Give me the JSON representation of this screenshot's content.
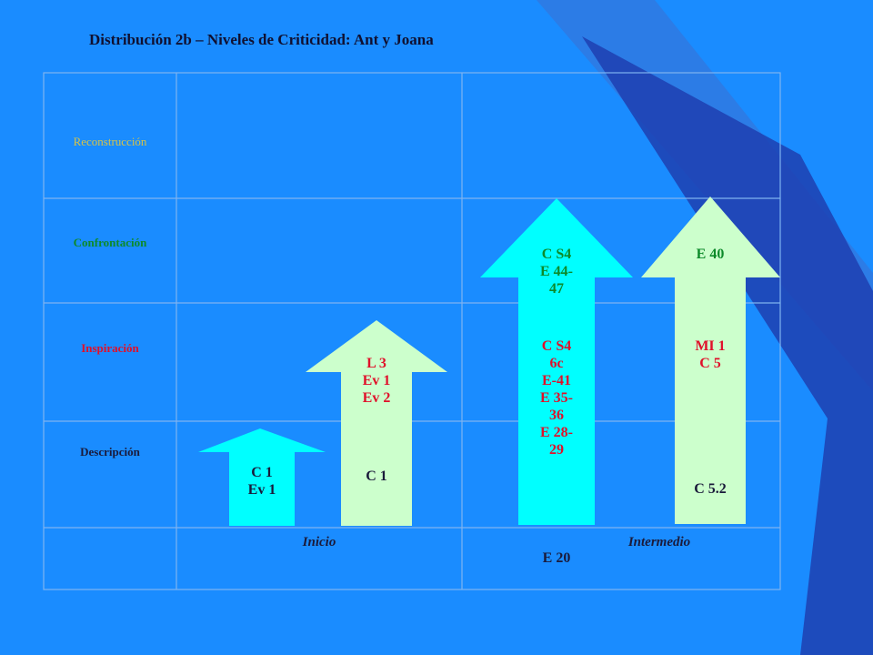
{
  "title": "Distribución 2b – Niveles de Criticidad: Ant y Joana",
  "colors": {
    "background": "#1a8cff",
    "grid_line": "#7fb3f0",
    "arrow_cyan": "#00ffff",
    "arrow_green": "#ccffcc",
    "reconstruccion": "#d4c24a",
    "confrontacion": "#0d8a2a",
    "inspiracion": "#e0102a",
    "descripcion": "#1a1a3a"
  },
  "rows": [
    {
      "label": "Reconstrucción"
    },
    {
      "label": "Confrontación"
    },
    {
      "label": "Inspiración"
    },
    {
      "label": "Descripción"
    }
  ],
  "columns": [
    {
      "label": "Inicio"
    },
    {
      "label": "Intermedio"
    }
  ],
  "arrows": [
    {
      "color": "cyan",
      "groups": [
        {
          "text": "C 1\nEv 1",
          "color": "#1a1a3a"
        }
      ]
    },
    {
      "color": "green",
      "groups": [
        {
          "text": "L 3\nEv 1\nEv 2",
          "color": "#e0102a"
        },
        {
          "text": "C 1",
          "color": "#1a1a3a"
        }
      ]
    },
    {
      "color": "cyan",
      "groups": [
        {
          "text": "C S4\nE 44-\n47",
          "color": "#0d8a2a"
        },
        {
          "text": "C S4\n6c\nE-41\nE 35-\n36\nE 28-\n29",
          "color": "#e0102a"
        }
      ]
    },
    {
      "color": "green",
      "groups": [
        {
          "text": "E 40",
          "color": "#0d8a2a"
        },
        {
          "text": "MI  1\nC 5",
          "color": "#e0102a"
        },
        {
          "text": "C 5.2",
          "color": "#1a1a3a"
        }
      ]
    }
  ],
  "extra_label": "E 20"
}
